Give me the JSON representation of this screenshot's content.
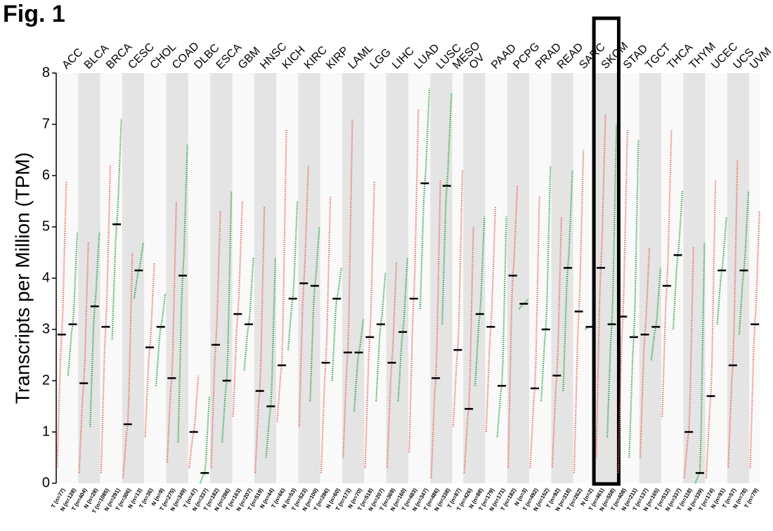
{
  "figure_label": "Fig. 1",
  "chart_data": {
    "type": "dotplot",
    "y_label": "Transcripts per Million (TPM)",
    "ylim": [
      0,
      8
    ],
    "yticks": [
      0,
      1,
      2,
      3,
      4,
      5,
      6,
      7,
      8
    ],
    "cancers": [
      {
        "name": "ACC",
        "groups": [
          {
            "label": "T (n=77)",
            "color": "#e8615c",
            "median": 2.9,
            "low": 0.3,
            "high": 5.9
          },
          {
            "label": "N (n=128)",
            "color": "#1e9e3c",
            "median": 3.1,
            "low": 2.1,
            "high": 4.9
          }
        ]
      },
      {
        "name": "BLCA",
        "groups": [
          {
            "label": "T (n=404)",
            "color": "#e8615c",
            "median": 1.95,
            "low": 0.2,
            "high": 4.7
          },
          {
            "label": "N (n=28)",
            "color": "#1e9e3c",
            "median": 3.45,
            "low": 1.1,
            "high": 4.9
          }
        ]
      },
      {
        "name": "BRCA",
        "groups": [
          {
            "label": "T (n=1085)",
            "color": "#e8615c",
            "median": 3.05,
            "low": 0.2,
            "high": 6.2
          },
          {
            "label": "N (n=291)",
            "color": "#1e9e3c",
            "median": 5.05,
            "low": 2.8,
            "high": 7.1
          }
        ]
      },
      {
        "name": "CESC",
        "groups": [
          {
            "label": "T (n=306)",
            "color": "#e8615c",
            "median": 1.15,
            "low": 0.1,
            "high": 4.5
          },
          {
            "label": "N (n=13)",
            "color": "#1e9e3c",
            "median": 4.15,
            "low": 3.6,
            "high": 4.7
          }
        ]
      },
      {
        "name": "CHOL",
        "groups": [
          {
            "label": "T (n=36)",
            "color": "#e8615c",
            "median": 2.65,
            "low": 0.9,
            "high": 4.3
          },
          {
            "label": "N (n=9)",
            "color": "#1e9e3c",
            "median": 3.05,
            "low": 1.9,
            "high": 3.7
          }
        ]
      },
      {
        "name": "COAD",
        "groups": [
          {
            "label": "T (n=275)",
            "color": "#e8615c",
            "median": 2.05,
            "low": 0.4,
            "high": 5.5
          },
          {
            "label": "N (n=349)",
            "color": "#1e9e3c",
            "median": 4.05,
            "low": 0.8,
            "high": 6.6
          }
        ]
      },
      {
        "name": "DLBC",
        "groups": [
          {
            "label": "T (n=47)",
            "color": "#e8615c",
            "median": 1.0,
            "low": 0.3,
            "high": 2.1
          },
          {
            "label": "N (n=337)",
            "color": "#1e9e3c",
            "median": 0.2,
            "low": 0,
            "high": 1.7
          }
        ]
      },
      {
        "name": "ESCA",
        "groups": [
          {
            "label": "T (n=182)",
            "color": "#e8615c",
            "median": 2.7,
            "low": 0.3,
            "high": 5.3
          },
          {
            "label": "N (n=286)",
            "color": "#1e9e3c",
            "median": 2.0,
            "low": 0.8,
            "high": 5.7
          }
        ]
      },
      {
        "name": "GBM",
        "groups": [
          {
            "label": "T (n=163)",
            "color": "#e8615c",
            "median": 3.3,
            "low": 1.3,
            "high": 5.5
          },
          {
            "label": "N (n=207)",
            "color": "#1e9e3c",
            "median": 3.1,
            "low": 2.2,
            "high": 4.4
          }
        ]
      },
      {
        "name": "HNSC",
        "groups": [
          {
            "label": "T (n=519)",
            "color": "#e8615c",
            "median": 1.8,
            "low": 0.2,
            "high": 5.4
          },
          {
            "label": "N (n=44)",
            "color": "#1e9e3c",
            "median": 1.5,
            "low": 0.5,
            "high": 4.4
          }
        ]
      },
      {
        "name": "KICH",
        "groups": [
          {
            "label": "T (n=66)",
            "color": "#e8615c",
            "median": 2.3,
            "low": 1.2,
            "high": 6.9
          },
          {
            "label": "N (n=53)",
            "color": "#1e9e3c",
            "median": 3.6,
            "low": 2.6,
            "high": 5.5
          }
        ]
      },
      {
        "name": "KIRC",
        "groups": [
          {
            "label": "T (n=523)",
            "color": "#e8615c",
            "median": 3.9,
            "low": 1.1,
            "high": 6.2
          },
          {
            "label": "N (n=100)",
            "color": "#1e9e3c",
            "median": 3.85,
            "low": 1.6,
            "high": 5.0
          }
        ]
      },
      {
        "name": "KIRP",
        "groups": [
          {
            "label": "T (n=286)",
            "color": "#e8615c",
            "median": 2.35,
            "low": 0.2,
            "high": 5.6
          },
          {
            "label": "N (n=60)",
            "color": "#1e9e3c",
            "median": 3.6,
            "low": 2.0,
            "high": 4.2
          }
        ]
      },
      {
        "name": "LAML",
        "groups": [
          {
            "label": "T (n=173)",
            "color": "#e8615c",
            "median": 2.55,
            "low": 0.5,
            "high": 7.1
          },
          {
            "label": "N (n=70)",
            "color": "#1e9e3c",
            "median": 2.55,
            "low": 1.4,
            "high": 3.2
          }
        ]
      },
      {
        "name": "LGG",
        "groups": [
          {
            "label": "T (n=518)",
            "color": "#e8615c",
            "median": 2.85,
            "low": 0.3,
            "high": 5.9
          },
          {
            "label": "N (n=207)",
            "color": "#1e9e3c",
            "median": 3.1,
            "low": 1.6,
            "high": 4.1
          }
        ]
      },
      {
        "name": "LIHC",
        "label_color": "#1e9e3c",
        "groups": [
          {
            "label": "T (n=369)",
            "color": "#e8615c",
            "median": 2.35,
            "low": 0.3,
            "high": 4.3
          },
          {
            "label": "N (n=160)",
            "color": "#1e9e3c",
            "median": 2.95,
            "low": 1.6,
            "high": 4.4
          }
        ]
      },
      {
        "name": "LUAD",
        "groups": [
          {
            "label": "T (n=483)",
            "color": "#e8615c",
            "median": 3.6,
            "low": 0.6,
            "high": 7.3
          },
          {
            "label": "N (n=347)",
            "color": "#1e9e3c",
            "median": 5.85,
            "low": 3.4,
            "high": 7.7
          }
        ]
      },
      {
        "name": "LUSC",
        "groups": [
          {
            "label": "T (n=486)",
            "color": "#e8615c",
            "median": 2.05,
            "low": 0.1,
            "high": 5.9
          },
          {
            "label": "N (n=338)",
            "color": "#1e9e3c",
            "median": 5.8,
            "low": 3.1,
            "high": 7.6
          }
        ]
      },
      {
        "name": "MESO",
        "groups": [
          {
            "label": "T (n=87)",
            "color": "#e8615c",
            "median": 2.6,
            "low": 1.1,
            "high": 6.1
          }
        ]
      },
      {
        "name": "OV",
        "groups": [
          {
            "label": "T (n=426)",
            "color": "#e8615c",
            "median": 1.45,
            "low": 0.2,
            "high": 5.0
          },
          {
            "label": "N (n=88)",
            "color": "#1e9e3c",
            "median": 3.3,
            "low": 1.9,
            "high": 5.2
          }
        ]
      },
      {
        "name": "PAAD",
        "groups": [
          {
            "label": "T (n=179)",
            "color": "#e8615c",
            "median": 3.05,
            "low": 1.0,
            "high": 5.4
          },
          {
            "label": "N (n=171)",
            "color": "#1e9e3c",
            "median": 1.9,
            "low": 0.9,
            "high": 5.2
          }
        ]
      },
      {
        "name": "PCPG",
        "groups": [
          {
            "label": "T (n=182)",
            "color": "#e8615c",
            "median": 4.05,
            "low": 0.3,
            "high": 5.8
          },
          {
            "label": "N (n=3)",
            "color": "#1e9e3c",
            "median": 3.5,
            "low": 3.4,
            "high": 3.6
          }
        ]
      },
      {
        "name": "PRAD",
        "groups": [
          {
            "label": "T (n=492)",
            "color": "#e8615c",
            "median": 1.85,
            "low": 0.3,
            "high": 5.6
          },
          {
            "label": "N (n=152)",
            "color": "#1e9e3c",
            "median": 3.0,
            "low": 1.6,
            "high": 6.2
          }
        ]
      },
      {
        "name": "READ",
        "groups": [
          {
            "label": "T (n=92)",
            "color": "#e8615c",
            "median": 2.1,
            "low": 0.3,
            "high": 5.2
          },
          {
            "label": "N (n=318)",
            "color": "#1e9e3c",
            "median": 4.2,
            "low": 1.8,
            "high": 6.1
          }
        ]
      },
      {
        "name": "SARC",
        "groups": [
          {
            "label": "T (n=262)",
            "color": "#e8615c",
            "median": 3.35,
            "low": 0.2,
            "high": 6.5
          },
          {
            "label": "N (n=2)",
            "color": "#1e9e3c",
            "median": 3.05,
            "low": 3.0,
            "high": 3.1
          }
        ]
      },
      {
        "name": "SKCM",
        "label_color": "#e8202a",
        "highlighted": true,
        "groups": [
          {
            "label": "T (n=461)",
            "color": "#e8615c",
            "median": 4.2,
            "low": 0.5,
            "high": 7.2
          },
          {
            "label": "N (n=558)",
            "color": "#1e9e3c",
            "median": 3.1,
            "low": 0.9,
            "high": 7.0
          }
        ]
      },
      {
        "name": "STAD",
        "groups": [
          {
            "label": "T (n=408)",
            "color": "#e8615c",
            "median": 3.25,
            "low": 0.2,
            "high": 6.9
          },
          {
            "label": "N (n=211)",
            "color": "#1e9e3c",
            "median": 2.85,
            "low": 0.5,
            "high": 6.7
          }
        ]
      },
      {
        "name": "TGCT",
        "groups": [
          {
            "label": "T (n=137)",
            "color": "#e8615c",
            "median": 2.9,
            "low": 0.5,
            "high": 4.6
          },
          {
            "label": "N (n=165)",
            "color": "#1e9e3c",
            "median": 3.05,
            "low": 2.4,
            "high": 4.2
          }
        ]
      },
      {
        "name": "THCA",
        "groups": [
          {
            "label": "T (n=512)",
            "color": "#e8615c",
            "median": 3.85,
            "low": 1.3,
            "high": 6.9
          },
          {
            "label": "N (n=337)",
            "color": "#1e9e3c",
            "median": 4.45,
            "low": 3.0,
            "high": 5.7
          }
        ]
      },
      {
        "name": "THYM",
        "groups": [
          {
            "label": "T (n=118)",
            "color": "#e8615c",
            "median": 1.0,
            "low": 0.1,
            "high": 4.6
          },
          {
            "label": "N (n=339)",
            "color": "#1e9e3c",
            "median": 0.2,
            "low": 0,
            "high": 4.7
          }
        ]
      },
      {
        "name": "UCEC",
        "groups": [
          {
            "label": "T (n=174)",
            "color": "#e8615c",
            "median": 1.7,
            "low": 0.1,
            "high": 5.9
          },
          {
            "label": "N (n=91)",
            "color": "#1e9e3c",
            "median": 4.15,
            "low": 3.1,
            "high": 5.2
          }
        ]
      },
      {
        "name": "UCS",
        "groups": [
          {
            "label": "T (n=57)",
            "color": "#e8615c",
            "median": 2.3,
            "low": 0.3,
            "high": 6.3
          },
          {
            "label": "N (n=78)",
            "color": "#1e9e3c",
            "median": 4.15,
            "low": 2.9,
            "high": 5.7
          }
        ]
      },
      {
        "name": "UVM",
        "groups": [
          {
            "label": "T (n=79)",
            "color": "#e8615c",
            "median": 3.1,
            "low": 0.3,
            "high": 5.3
          }
        ]
      }
    ]
  }
}
